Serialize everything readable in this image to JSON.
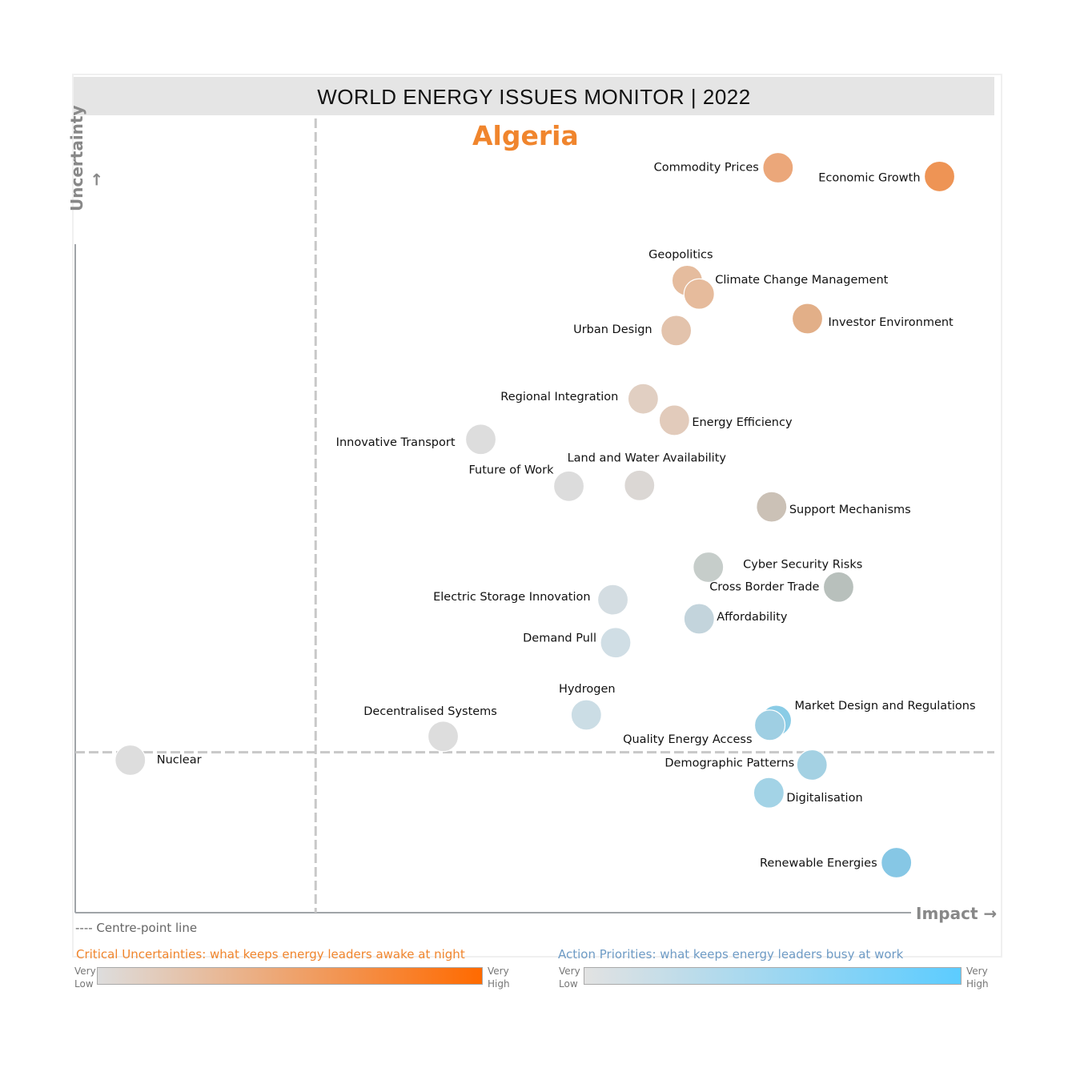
{
  "title": "WORLD ENERGY ISSUES MONITOR | 2022",
  "country": "Algeria",
  "centre_note": "---- Centre-point line",
  "legend": {
    "uncertainty_title": "Critical Uncertainties: what keeps energy leaders awake at night",
    "priority_title": "Action Priorities: what keeps energy leaders busy at work",
    "very_low": [
      "Very",
      "Low"
    ],
    "very_high": [
      "Very",
      "High"
    ],
    "uncertainty_colors": [
      "#DDDDDD",
      "#FF6A00"
    ],
    "priority_colors": [
      "#E2E2E2",
      "#5CCCFF"
    ],
    "uncertainty_color": "#F0852D",
    "priority_color": "#6E9BC5"
  },
  "chart_data": {
    "type": "scatter",
    "title": "WORLD ENERGY ISSUES MONITOR | 2022",
    "subtitle": "Algeria",
    "xlabel": "Impact →",
    "ylabel": "Uncertainty →",
    "xlim": [
      0,
      100
    ],
    "ylim": [
      0,
      100
    ],
    "centre_point": {
      "impact": 26.2,
      "uncertainty": 20.2
    },
    "grid": false,
    "points": [
      {
        "name": "Commodity Prices",
        "impact": 76.6,
        "uncertainty": 93.8,
        "color": "#EBA77A"
      },
      {
        "name": "Economic Growth",
        "impact": 94.2,
        "uncertainty": 92.7,
        "color": "#EE9455"
      },
      {
        "name": "Geopolitics",
        "impact": 66.7,
        "uncertainty": 79.6,
        "color": "#E5BC9E"
      },
      {
        "name": "Climate Change Management",
        "impact": 68.0,
        "uncertainty": 77.9,
        "color": "#E6BB9C"
      },
      {
        "name": "Urban Design",
        "impact": 65.5,
        "uncertainty": 73.3,
        "color": "#E3C3AC"
      },
      {
        "name": "Investor Environment",
        "impact": 79.8,
        "uncertainty": 74.8,
        "color": "#E2AF88"
      },
      {
        "name": "Regional Integration",
        "impact": 61.9,
        "uncertainty": 64.7,
        "color": "#E1CFC2"
      },
      {
        "name": "Energy Efficiency",
        "impact": 65.3,
        "uncertainty": 62.0,
        "color": "#E2CBBB"
      },
      {
        "name": "Innovative Transport",
        "impact": 44.2,
        "uncertainty": 59.6,
        "color": "#DDDDDD"
      },
      {
        "name": "Future of Work",
        "impact": 53.8,
        "uncertainty": 53.7,
        "color": "#DCDCDC"
      },
      {
        "name": "Land and Water Availability",
        "impact": 61.5,
        "uncertainty": 53.8,
        "color": "#DBD7D4"
      },
      {
        "name": "Support Mechanisms",
        "impact": 75.9,
        "uncertainty": 51.1,
        "color": "#CBC1B6"
      },
      {
        "name": "Cyber Security Risks",
        "impact": 69.0,
        "uncertainty": 43.5,
        "color": "#C6CDCA"
      },
      {
        "name": "Cross Border Trade",
        "impact": 83.2,
        "uncertainty": 41.0,
        "color": "#B8C0BC"
      },
      {
        "name": "Electric Storage Innovation",
        "impact": 58.6,
        "uncertainty": 39.4,
        "color": "#D4DDE2"
      },
      {
        "name": "Affordability",
        "impact": 68.0,
        "uncertainty": 37.0,
        "color": "#C3D4DC"
      },
      {
        "name": "Demand Pull",
        "impact": 58.9,
        "uncertainty": 34.0,
        "color": "#D0DEE5"
      },
      {
        "name": "Hydrogen",
        "impact": 55.7,
        "uncertainty": 24.9,
        "color": "#CBDDE5"
      },
      {
        "name": "Decentralised Systems",
        "impact": 40.1,
        "uncertainty": 22.2,
        "color": "#DDDDDD"
      },
      {
        "name": "Market Design and Regulations",
        "impact": 76.4,
        "uncertainty": 24.2,
        "color": "#8ACCE6"
      },
      {
        "name": "Quality Energy Access",
        "impact": 75.7,
        "uncertainty": 23.6,
        "color": "#9FCFE3"
      },
      {
        "name": "Demographic Patterns",
        "impact": 80.3,
        "uncertainty": 18.6,
        "color": "#A4D1E3"
      },
      {
        "name": "Digitalisation",
        "impact": 75.6,
        "uncertainty": 15.1,
        "color": "#A3D3E6"
      },
      {
        "name": "Renewable Energies",
        "impact": 89.5,
        "uncertainty": 6.3,
        "color": "#86C7E5"
      },
      {
        "name": "Nuclear",
        "impact": 6.0,
        "uncertainty": 19.2,
        "color": "#DDDDDD"
      }
    ]
  }
}
